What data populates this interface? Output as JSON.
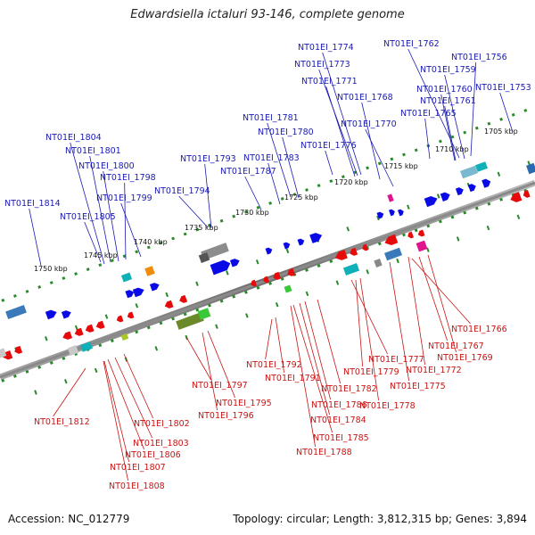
{
  "title": "Edwardsiella ictaluri 93-146, complete genome",
  "footer": {
    "accession": "Accession: NC_012779",
    "info": "Topology: circular; Length: 3,812,315 bp; Genes: 3,894"
  },
  "scale_labels": [
    "1705 kbp",
    "1710 kbp",
    "1715 kbp",
    "1720 kbp",
    "1725 kbp",
    "1730 kbp",
    "1735 kbp",
    "1740 kbp",
    "1745 kbp",
    "1750 kbp"
  ],
  "top_labels": [
    "NT01EI_1774",
    "NT01EI_1773",
    "NT01EI_1771",
    "NT01EI_1768",
    "NT01EI_1770",
    "NT01EI_1776",
    "NT01EI_1762",
    "NT01EI_1756",
    "NT01EI_1759",
    "NT01EI_1760",
    "NT01EI_1761",
    "NT01EI_1765",
    "NT01EI_1753",
    "NT01EI_1781",
    "NT01EI_1780",
    "NT01EI_1783",
    "NT01EI_1787",
    "NT01EI_1793",
    "NT01EI_1794",
    "NT01EI_1804",
    "NT01EI_1801",
    "NT01EI_1800",
    "NT01EI_1798",
    "NT01EI_1799",
    "NT01EI_1805",
    "NT01EI_1814"
  ],
  "bottom_labels": [
    "NT01EI_1766",
    "NT01EI_1767",
    "NT01EI_1769",
    "NT01EI_1772",
    "NT01EI_1775",
    "NT01EI_1777",
    "NT01EI_1779",
    "NT01EI_1778",
    "NT01EI_1782",
    "NT01EI_1786",
    "NT01EI_1784",
    "NT01EI_1785",
    "NT01EI_1788",
    "NT01EI_1792",
    "NT01EI_1791",
    "NT01EI_1797",
    "NT01EI_1795",
    "NT01EI_1796",
    "NT01EI_1802",
    "NT01EI_1803",
    "NT01EI_1806",
    "NT01EI_1807",
    "NT01EI_1808",
    "NT01EI_1812"
  ],
  "colors": {
    "forward": "#0a0ae6",
    "reverse": "#e60a0a",
    "backbone": "#8a8a8a",
    "ticks": "#2a8a2a"
  }
}
